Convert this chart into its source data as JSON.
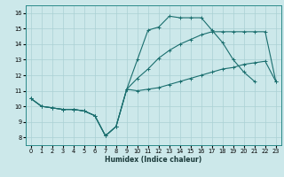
{
  "xlabel": "Humidex (Indice chaleur)",
  "bg_color": "#cce8ea",
  "grid_color": "#aad0d4",
  "line_color": "#1a6e6e",
  "line1_y": [
    10.5,
    10.0,
    9.9,
    9.8,
    9.8,
    9.7,
    9.4,
    8.1,
    8.7,
    11.1,
    13.0,
    14.9,
    15.1,
    15.8,
    15.7,
    15.7,
    15.7,
    14.9,
    14.1,
    13.0,
    12.2,
    11.6
  ],
  "line1_x": [
    0,
    1,
    2,
    3,
    4,
    5,
    6,
    7,
    8,
    9,
    10,
    11,
    12,
    13,
    14,
    15,
    16,
    17,
    18,
    19,
    20,
    21
  ],
  "line2_y": [
    10.5,
    10.0,
    9.9,
    9.8,
    9.8,
    9.7,
    9.4,
    8.1,
    8.7,
    11.1,
    11.8,
    12.4,
    13.1,
    13.6,
    14.0,
    14.3,
    14.6,
    14.8,
    14.8,
    14.8,
    14.8,
    14.8,
    14.8,
    11.6
  ],
  "line2_x": [
    0,
    1,
    2,
    3,
    4,
    5,
    6,
    7,
    8,
    9,
    10,
    11,
    12,
    13,
    14,
    15,
    16,
    17,
    18,
    19,
    20,
    21,
    22,
    23
  ],
  "line3_y": [
    10.5,
    10.0,
    9.9,
    9.8,
    9.8,
    9.7,
    9.4,
    8.1,
    8.7,
    11.1,
    11.0,
    11.1,
    11.2,
    11.4,
    11.6,
    11.8,
    12.0,
    12.2,
    12.4,
    12.5,
    12.7,
    12.8,
    12.9,
    11.6
  ],
  "line3_x": [
    0,
    1,
    2,
    3,
    4,
    5,
    6,
    7,
    8,
    9,
    10,
    11,
    12,
    13,
    14,
    15,
    16,
    17,
    18,
    19,
    20,
    21,
    22,
    23
  ],
  "xlim": [
    -0.5,
    23.5
  ],
  "ylim": [
    7.5,
    16.5
  ],
  "yticks": [
    8,
    9,
    10,
    11,
    12,
    13,
    14,
    15,
    16
  ],
  "xticks": [
    0,
    1,
    2,
    3,
    4,
    5,
    6,
    7,
    8,
    9,
    10,
    11,
    12,
    13,
    14,
    15,
    16,
    17,
    18,
    19,
    20,
    21,
    22,
    23
  ],
  "xlabel_fontsize": 5.5,
  "tick_fontsize": 4.8
}
